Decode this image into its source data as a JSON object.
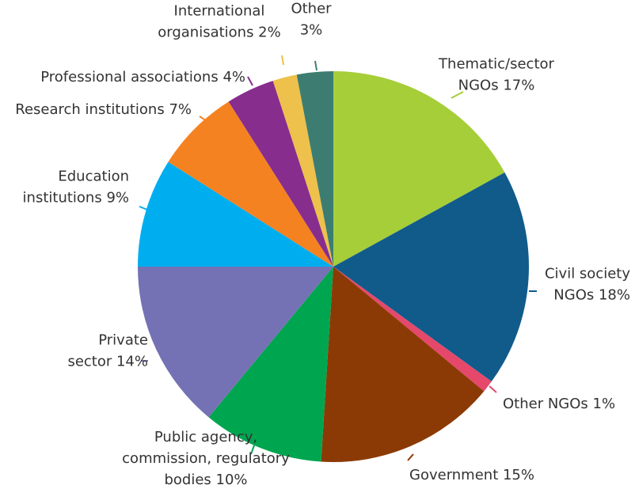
{
  "chart_data": {
    "type": "pie",
    "title": "",
    "slices": [
      {
        "label_lines": [
          "Thematic/sector",
          "NGOs 17%"
        ],
        "value": 17,
        "color": "#a6ce39"
      },
      {
        "label_lines": [
          "Civil society",
          "NGOs 18%"
        ],
        "value": 18,
        "color": "#115b8b"
      },
      {
        "label_lines": [
          "Other NGOs 1%"
        ],
        "value": 1,
        "color": "#e5486b"
      },
      {
        "label_lines": [
          "Government 15%"
        ],
        "value": 15,
        "color": "#8c3a05"
      },
      {
        "label_lines": [
          "Public agency,",
          "commission, regulatory",
          "bodies 10%"
        ],
        "value": 10,
        "color": "#00a54f"
      },
      {
        "label_lines": [
          "Private",
          "sector 14%"
        ],
        "value": 14,
        "color": "#7472b4"
      },
      {
        "label_lines": [
          "Education",
          "institutions 9%"
        ],
        "value": 9,
        "color": "#00aeef"
      },
      {
        "label_lines": [
          "Research institutions 7%"
        ],
        "value": 7,
        "color": "#f58220"
      },
      {
        "label_lines": [
          "Professional associations 4%"
        ],
        "value": 4,
        "color": "#872d8e"
      },
      {
        "label_lines": [
          "International",
          "organisations 2%"
        ],
        "value": 2,
        "color": "#edc14b"
      },
      {
        "label_lines": [
          "Other",
          "3%"
        ],
        "value": 3,
        "color": "#3d7d71"
      }
    ]
  }
}
